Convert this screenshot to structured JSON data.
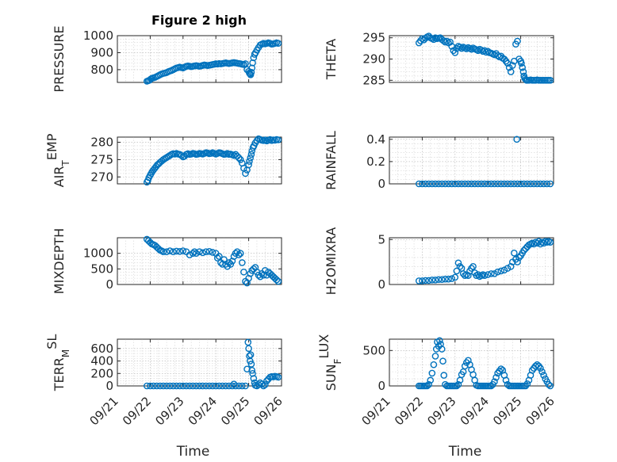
{
  "figure_title": "Figure 2 high",
  "colors": {
    "marker": "#0072BD",
    "axis": "#262626"
  },
  "chart_data": [
    {
      "type": "scatter",
      "ylabel": "PRESSURE",
      "xlabel": "",
      "title": "Figure 2 high",
      "xlim": [
        0,
        5
      ],
      "ylim": [
        725,
        1000
      ],
      "yticks": [
        800,
        900,
        1000
      ],
      "ytick_labels": [
        "800",
        "900",
        "1000"
      ],
      "xticks": [
        0,
        1,
        2,
        3,
        4,
        5
      ],
      "xtick_labels": [],
      "x": [
        0.9,
        0.94,
        0.98,
        1.02,
        1.06,
        1.1,
        1.15,
        1.2,
        1.25,
        1.3,
        1.35,
        1.4,
        1.45,
        1.5,
        1.55,
        1.6,
        1.65,
        1.7,
        1.75,
        1.8,
        1.85,
        1.9,
        1.95,
        2.0,
        2.05,
        2.1,
        2.15,
        2.2,
        2.25,
        2.3,
        2.35,
        2.4,
        2.45,
        2.5,
        2.55,
        2.6,
        2.65,
        2.7,
        2.75,
        2.8,
        2.85,
        2.9,
        2.95,
        3.0,
        3.05,
        3.1,
        3.15,
        3.2,
        3.25,
        3.3,
        3.35,
        3.4,
        3.45,
        3.5,
        3.55,
        3.6,
        3.65,
        3.7,
        3.75,
        3.8,
        3.85,
        3.9,
        3.95,
        4.0,
        4.02,
        4.04,
        4.06,
        4.08,
        4.1,
        4.12,
        4.15,
        4.18,
        4.21,
        4.25,
        4.3,
        4.35,
        4.4,
        4.45,
        4.5,
        4.55,
        4.6,
        4.65,
        4.7,
        4.75,
        4.8,
        4.85,
        4.9
      ],
      "y": [
        732,
        735,
        738,
        745,
        750,
        752,
        755,
        760,
        765,
        770,
        775,
        778,
        780,
        783,
        788,
        792,
        795,
        800,
        805,
        810,
        812,
        815,
        812,
        810,
        815,
        820,
        822,
        820,
        818,
        820,
        822,
        824,
        822,
        820,
        822,
        825,
        828,
        826,
        824,
        826,
        828,
        830,
        832,
        835,
        833,
        836,
        834,
        836,
        838,
        840,
        838,
        836,
        838,
        840,
        842,
        840,
        838,
        836,
        835,
        832,
        830,
        835,
        800,
        790,
        780,
        775,
        770,
        785,
        810,
        840,
        870,
        890,
        900,
        915,
        930,
        945,
        950,
        955,
        952,
        955,
        958,
        955,
        950,
        952,
        955,
        958,
        955
      ]
    },
    {
      "type": "scatter",
      "ylabel": "THETA",
      "xlabel": "",
      "xlim": [
        0,
        5
      ],
      "ylim": [
        284.5,
        295.5
      ],
      "yticks": [
        285,
        290,
        295
      ],
      "ytick_labels": [
        "285",
        "290",
        "295"
      ],
      "xticks": [
        0,
        1,
        2,
        3,
        4,
        5
      ],
      "xtick_labels": [],
      "x": [
        0.9,
        0.95,
        1.0,
        1.05,
        1.1,
        1.15,
        1.2,
        1.25,
        1.3,
        1.35,
        1.4,
        1.45,
        1.5,
        1.55,
        1.6,
        1.65,
        1.7,
        1.75,
        1.8,
        1.85,
        1.9,
        1.95,
        2.0,
        2.05,
        2.1,
        2.15,
        2.2,
        2.25,
        2.3,
        2.35,
        2.4,
        2.45,
        2.5,
        2.55,
        2.6,
        2.65,
        2.7,
        2.75,
        2.8,
        2.85,
        2.9,
        2.95,
        3.0,
        3.05,
        3.1,
        3.15,
        3.2,
        3.25,
        3.3,
        3.35,
        3.4,
        3.45,
        3.5,
        3.55,
        3.6,
        3.65,
        3.7,
        3.75,
        3.8,
        3.85,
        3.9,
        3.95,
        4.0,
        4.02,
        4.05,
        4.08,
        4.1,
        4.12,
        4.15,
        4.18,
        4.2,
        4.25,
        4.3,
        4.35,
        4.4,
        4.45,
        4.5,
        4.55,
        4.6,
        4.65,
        4.7,
        4.75,
        4.8,
        4.85,
        4.9
      ],
      "y": [
        293.8,
        294.3,
        294.8,
        294.5,
        294.9,
        295.2,
        295.4,
        295.0,
        294.8,
        294.6,
        295.0,
        294.8,
        294.9,
        295.0,
        294.6,
        294.3,
        294.0,
        294.2,
        293.8,
        294.0,
        293.0,
        292.0,
        291.5,
        292.5,
        293.0,
        292.8,
        292.5,
        292.8,
        292.6,
        292.4,
        292.7,
        292.5,
        292.3,
        292.6,
        292.4,
        292.2,
        292.0,
        292.3,
        292.1,
        291.8,
        292.0,
        291.6,
        291.8,
        291.5,
        291.4,
        291.2,
        291.0,
        291.3,
        290.8,
        290.5,
        290.7,
        290.2,
        290.0,
        289.5,
        289.0,
        288.0,
        287.0,
        288.5,
        289.5,
        293.5,
        294.2,
        290.0,
        289.5,
        289.0,
        288.0,
        287.0,
        286.0,
        285.5,
        285.2,
        285.0,
        285.0,
        285.0,
        285.1,
        285.0,
        285.0,
        285.0,
        285.1,
        285.0,
        285.0,
        285.0,
        285.0,
        285.0,
        285.0,
        285.0,
        285.0
      ]
    },
    {
      "type": "scatter",
      "ylabel": "AIR_TEMP",
      "ylabel_main": "AIR",
      "ylabel_sub": "T",
      "ylabel_rest": "EMP",
      "xlabel": "",
      "xlim": [
        0,
        5
      ],
      "ylim": [
        268,
        281.5
      ],
      "yticks": [
        270,
        275,
        280
      ],
      "ytick_labels": [
        "270",
        "275",
        "280"
      ],
      "xticks": [
        0,
        1,
        2,
        3,
        4,
        5
      ],
      "xtick_labels": [],
      "x": [
        0.9,
        0.93,
        0.96,
        1.0,
        1.03,
        1.06,
        1.1,
        1.14,
        1.18,
        1.22,
        1.26,
        1.3,
        1.35,
        1.4,
        1.45,
        1.5,
        1.55,
        1.6,
        1.65,
        1.7,
        1.75,
        1.8,
        1.85,
        1.9,
        1.95,
        2.0,
        2.05,
        2.1,
        2.15,
        2.2,
        2.25,
        2.3,
        2.35,
        2.4,
        2.45,
        2.5,
        2.55,
        2.6,
        2.65,
        2.7,
        2.75,
        2.8,
        2.85,
        2.9,
        2.95,
        3.0,
        3.05,
        3.1,
        3.15,
        3.2,
        3.25,
        3.3,
        3.35,
        3.4,
        3.45,
        3.5,
        3.55,
        3.6,
        3.65,
        3.7,
        3.75,
        3.8,
        3.85,
        3.9,
        3.95,
        4.0,
        4.02,
        4.05,
        4.08,
        4.1,
        4.13,
        4.16,
        4.2,
        4.25,
        4.3,
        4.35,
        4.4,
        4.45,
        4.5,
        4.55,
        4.6,
        4.65,
        4.7,
        4.75,
        4.8,
        4.85,
        4.9
      ],
      "y": [
        268.5,
        269.0,
        269.8,
        270.5,
        271.0,
        271.5,
        272.0,
        272.5,
        273.0,
        273.5,
        273.8,
        274.2,
        274.6,
        275.0,
        275.3,
        275.6,
        275.9,
        276.2,
        276.5,
        276.7,
        276.6,
        276.8,
        276.6,
        276.5,
        276.2,
        275.8,
        276.0,
        276.5,
        276.7,
        276.5,
        276.6,
        276.8,
        276.7,
        276.5,
        276.6,
        276.8,
        276.7,
        276.6,
        276.8,
        277.0,
        276.9,
        276.7,
        276.8,
        277.0,
        276.8,
        276.6,
        276.8,
        277.0,
        276.9,
        276.7,
        276.5,
        276.6,
        276.8,
        276.5,
        276.6,
        276.4,
        276.2,
        276.5,
        276.0,
        275.5,
        275.0,
        274.0,
        272.5,
        271.0,
        272.0,
        273.5,
        274.5,
        275.5,
        276.5,
        277.5,
        278.5,
        279.0,
        279.8,
        280.5,
        281.0,
        280.8,
        280.6,
        280.5,
        280.7,
        280.4,
        280.6,
        280.8,
        280.5,
        280.7,
        280.6,
        280.8,
        280.7
      ]
    },
    {
      "type": "scatter",
      "ylabel": "RAINFALL",
      "xlabel": "",
      "xlim": [
        0,
        5
      ],
      "ylim": [
        0,
        0.42
      ],
      "yticks": [
        0,
        0.2,
        0.4
      ],
      "ytick_labels": [
        "0",
        "0.2",
        "0.4"
      ],
      "xticks": [
        0,
        1,
        2,
        3,
        4,
        5
      ],
      "xtick_labels": [],
      "x": [
        0.9,
        1.0,
        1.1,
        1.2,
        1.3,
        1.4,
        1.5,
        1.6,
        1.7,
        1.8,
        1.9,
        2.0,
        2.1,
        2.2,
        2.3,
        2.4,
        2.5,
        2.6,
        2.7,
        2.8,
        2.9,
        3.0,
        3.1,
        3.2,
        3.3,
        3.4,
        3.5,
        3.6,
        3.7,
        3.8,
        3.88,
        3.9,
        4.0,
        4.1,
        4.2,
        4.3,
        4.4,
        4.5,
        4.6,
        4.7,
        4.8,
        4.9
      ],
      "y": [
        0,
        0,
        0,
        0,
        0,
        0,
        0,
        0,
        0,
        0,
        0,
        0,
        0,
        0,
        0,
        0,
        0,
        0,
        0,
        0,
        0,
        0,
        0,
        0,
        0,
        0,
        0,
        0,
        0,
        0,
        0.4,
        0,
        0,
        0,
        0,
        0,
        0,
        0,
        0,
        0,
        0,
        0
      ]
    },
    {
      "type": "scatter",
      "ylabel": "MIXDEPTH",
      "xlabel": "",
      "xlim": [
        0,
        5
      ],
      "ylim": [
        0,
        1500
      ],
      "yticks": [
        0,
        500,
        1000
      ],
      "ytick_labels": [
        "0",
        "500",
        "1000"
      ],
      "xticks": [
        0,
        1,
        2,
        3,
        4,
        5
      ],
      "xtick_labels": [],
      "x": [
        0.9,
        0.95,
        1.0,
        1.05,
        1.1,
        1.15,
        1.2,
        1.25,
        1.3,
        1.35,
        1.4,
        1.5,
        1.6,
        1.7,
        1.8,
        1.9,
        2.0,
        2.1,
        2.2,
        2.3,
        2.35,
        2.4,
        2.5,
        2.6,
        2.7,
        2.8,
        2.9,
        3.0,
        3.05,
        3.1,
        3.15,
        3.2,
        3.25,
        3.3,
        3.35,
        3.4,
        3.45,
        3.5,
        3.55,
        3.6,
        3.65,
        3.7,
        3.75,
        3.8,
        3.85,
        3.9,
        3.95,
        4.0,
        4.05,
        4.1,
        4.15,
        4.2,
        4.25,
        4.3,
        4.35,
        4.4,
        4.45,
        4.5,
        4.55,
        4.6,
        4.65,
        4.7,
        4.75,
        4.8,
        4.85,
        4.9
      ],
      "y": [
        1450,
        1400,
        1350,
        1300,
        1280,
        1250,
        1200,
        1150,
        1100,
        1080,
        1050,
        1050,
        1080,
        1050,
        1070,
        1060,
        1080,
        1050,
        950,
        1000,
        1050,
        1000,
        1050,
        1020,
        1050,
        1060,
        1030,
        1000,
        850,
        900,
        700,
        650,
        800,
        650,
        580,
        700,
        650,
        750,
        900,
        1000,
        1050,
        950,
        1000,
        700,
        400,
        100,
        50,
        200,
        350,
        450,
        500,
        550,
        400,
        300,
        250,
        350,
        300,
        450,
        300,
        400,
        350,
        300,
        250,
        200,
        150,
        100
      ]
    },
    {
      "type": "scatter",
      "ylabel": "H2OMIXRA",
      "xlabel": "",
      "xlim": [
        0,
        5
      ],
      "ylim": [
        0,
        5.2
      ],
      "yticks": [
        0,
        5
      ],
      "ytick_labels": [
        "0",
        "5"
      ],
      "xticks": [
        0,
        1,
        2,
        3,
        4,
        5
      ],
      "xtick_labels": [],
      "x": [
        0.9,
        1.0,
        1.1,
        1.2,
        1.3,
        1.4,
        1.5,
        1.6,
        1.7,
        1.8,
        1.9,
        2.0,
        2.05,
        2.1,
        2.15,
        2.2,
        2.25,
        2.3,
        2.35,
        2.4,
        2.45,
        2.5,
        2.55,
        2.6,
        2.65,
        2.7,
        2.75,
        2.8,
        2.85,
        2.9,
        3.0,
        3.1,
        3.2,
        3.3,
        3.4,
        3.5,
        3.6,
        3.7,
        3.75,
        3.8,
        3.85,
        3.9,
        3.95,
        4.0,
        4.05,
        4.1,
        4.15,
        4.2,
        4.25,
        4.3,
        4.35,
        4.4,
        4.45,
        4.5,
        4.55,
        4.6,
        4.65,
        4.7,
        4.75,
        4.8,
        4.85,
        4.9
      ],
      "y": [
        0.4,
        0.4,
        0.45,
        0.45,
        0.5,
        0.5,
        0.55,
        0.55,
        0.6,
        0.6,
        0.65,
        0.8,
        1.5,
        2.4,
        2.0,
        1.8,
        1.2,
        1.0,
        1.1,
        1.0,
        1.5,
        1.8,
        2.0,
        1.3,
        1.0,
        1.1,
        0.9,
        1.0,
        1.1,
        1.0,
        1.1,
        1.2,
        1.2,
        1.4,
        1.5,
        1.6,
        1.8,
        2.0,
        2.5,
        3.5,
        2.8,
        2.5,
        3.0,
        3.2,
        3.5,
        3.8,
        4.0,
        4.2,
        4.4,
        4.5,
        4.6,
        4.5,
        4.7,
        4.6,
        4.8,
        4.5,
        4.7,
        4.6,
        4.8,
        4.7,
        4.8,
        4.7
      ]
    },
    {
      "type": "scatter",
      "ylabel": "TERR_MSL",
      "ylabel_main": "TERR",
      "ylabel_sub": "M",
      "ylabel_rest": "SL",
      "xlabel": "Time",
      "xlim": [
        0,
        5
      ],
      "ylim": [
        0,
        750
      ],
      "yticks": [
        0,
        200,
        400,
        600
      ],
      "ytick_labels": [
        "0",
        "200",
        "400",
        "600"
      ],
      "xticks": [
        0,
        1,
        2,
        3,
        4,
        5
      ],
      "xtick_labels": [
        "09/21",
        "09/22",
        "09/23",
        "09/24",
        "09/25",
        "09/26"
      ],
      "x": [
        0.9,
        1.0,
        1.1,
        1.2,
        1.3,
        1.4,
        1.5,
        1.6,
        1.7,
        1.8,
        1.9,
        2.0,
        2.1,
        2.2,
        2.3,
        2.4,
        2.5,
        2.6,
        2.7,
        2.8,
        2.9,
        3.0,
        3.1,
        3.2,
        3.3,
        3.4,
        3.5,
        3.55,
        3.6,
        3.7,
        3.8,
        3.9,
        3.95,
        3.98,
        4.0,
        4.02,
        4.04,
        4.06,
        4.08,
        4.1,
        4.12,
        4.15,
        4.18,
        4.2,
        4.25,
        4.3,
        4.35,
        4.4,
        4.45,
        4.5,
        4.55,
        4.6,
        4.65,
        4.7,
        4.75,
        4.8,
        4.85,
        4.9
      ],
      "y": [
        0,
        0,
        0,
        0,
        0,
        0,
        0,
        0,
        0,
        0,
        0,
        0,
        0,
        0,
        0,
        0,
        0,
        0,
        0,
        0,
        0,
        0,
        0,
        0,
        0,
        0,
        0,
        30,
        0,
        0,
        0,
        0,
        270,
        700,
        600,
        480,
        400,
        500,
        350,
        250,
        200,
        120,
        50,
        10,
        0,
        20,
        50,
        30,
        0,
        20,
        80,
        110,
        140,
        150,
        145,
        155,
        150,
        140
      ]
    },
    {
      "type": "scatter",
      "ylabel": "SUN_FLUX",
      "ylabel_main": "SUN",
      "ylabel_sub": "F",
      "ylabel_rest": "LUX",
      "xlabel": "Time",
      "xlim": [
        0,
        5
      ],
      "ylim": [
        0,
        660
      ],
      "yticks": [
        0,
        500
      ],
      "ytick_labels": [
        "0",
        "500"
      ],
      "xticks": [
        0,
        1,
        2,
        3,
        4,
        5
      ],
      "xtick_labels": [
        "09/21",
        "09/22",
        "09/23",
        "09/24",
        "09/25",
        "09/26"
      ],
      "x": [
        0.9,
        0.95,
        1.0,
        1.05,
        1.1,
        1.15,
        1.2,
        1.25,
        1.3,
        1.35,
        1.4,
        1.43,
        1.46,
        1.5,
        1.53,
        1.56,
        1.6,
        1.63,
        1.66,
        1.7,
        1.75,
        1.8,
        1.85,
        1.9,
        1.95,
        2.0,
        2.05,
        2.1,
        2.15,
        2.2,
        2.25,
        2.3,
        2.35,
        2.4,
        2.45,
        2.5,
        2.55,
        2.6,
        2.65,
        2.7,
        2.75,
        2.8,
        2.85,
        2.9,
        2.95,
        3.0,
        3.05,
        3.1,
        3.15,
        3.2,
        3.25,
        3.3,
        3.35,
        3.4,
        3.45,
        3.5,
        3.55,
        3.6,
        3.65,
        3.7,
        3.75,
        3.8,
        3.85,
        3.9,
        3.95,
        4.0,
        4.05,
        4.1,
        4.15,
        4.2,
        4.25,
        4.3,
        4.35,
        4.4,
        4.45,
        4.5,
        4.55,
        4.6,
        4.65,
        4.7,
        4.75,
        4.8,
        4.85,
        4.9
      ],
      "y": [
        0,
        0,
        0,
        0,
        0,
        0,
        20,
        80,
        180,
        300,
        420,
        520,
        620,
        560,
        640,
        590,
        520,
        350,
        150,
        20,
        0,
        0,
        0,
        0,
        0,
        0,
        0,
        20,
        80,
        160,
        200,
        280,
        330,
        360,
        300,
        230,
        160,
        80,
        10,
        0,
        0,
        0,
        0,
        0,
        0,
        0,
        0,
        0,
        20,
        60,
        120,
        180,
        210,
        240,
        220,
        150,
        80,
        20,
        0,
        0,
        0,
        0,
        0,
        0,
        0,
        0,
        0,
        0,
        0,
        30,
        80,
        150,
        220,
        250,
        280,
        300,
        280,
        250,
        200,
        150,
        100,
        60,
        20,
        0
      ]
    }
  ]
}
